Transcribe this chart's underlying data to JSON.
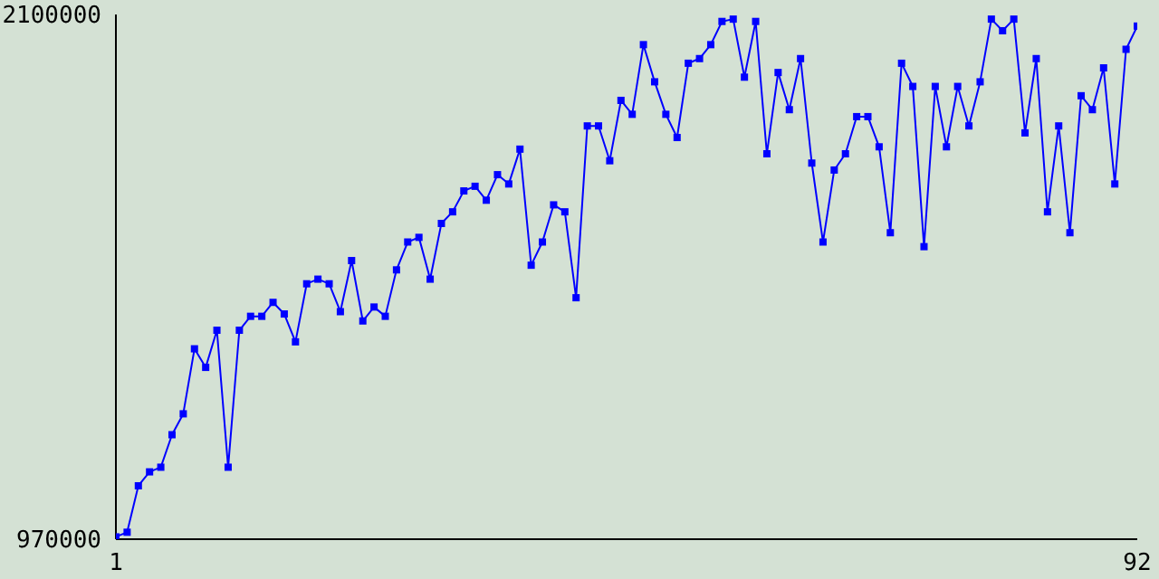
{
  "chart_data": {
    "type": "line",
    "x": [
      1,
      2,
      3,
      4,
      5,
      6,
      7,
      8,
      9,
      10,
      11,
      12,
      13,
      14,
      15,
      16,
      17,
      18,
      19,
      20,
      21,
      22,
      23,
      24,
      25,
      26,
      27,
      28,
      29,
      30,
      31,
      32,
      33,
      34,
      35,
      36,
      37,
      38,
      39,
      40,
      41,
      42,
      43,
      44,
      45,
      46,
      47,
      48,
      49,
      50,
      51,
      52,
      53,
      54,
      55,
      56,
      57,
      58,
      59,
      60,
      61,
      62,
      63,
      64,
      65,
      66,
      67,
      68,
      69,
      70,
      71,
      72,
      73,
      74,
      75,
      76,
      77,
      78,
      79,
      80,
      81,
      82,
      83,
      84,
      85,
      86,
      87,
      88,
      89,
      90,
      91,
      92
    ],
    "series": [
      {
        "color": "#0000ff",
        "values": [
          975000,
          985000,
          1085000,
          1115000,
          1125000,
          1195000,
          1240000,
          1380000,
          1340000,
          1420000,
          1125000,
          1420000,
          1450000,
          1450000,
          1480000,
          1455000,
          1395000,
          1520000,
          1530000,
          1520000,
          1460000,
          1570000,
          1440000,
          1470000,
          1450000,
          1550000,
          1610000,
          1620000,
          1530000,
          1650000,
          1675000,
          1720000,
          1730000,
          1700000,
          1755000,
          1735000,
          1810000,
          1560000,
          1610000,
          1690000,
          1675000,
          1490000,
          1860000,
          1860000,
          1785000,
          1915000,
          1885000,
          2035000,
          1955000,
          1885000,
          1835000,
          1995000,
          2005000,
          2035000,
          2085000,
          2090000,
          1965000,
          2085000,
          1800000,
          1975000,
          1895000,
          2005000,
          1780000,
          1610000,
          1765000,
          1800000,
          1880000,
          1880000,
          1815000,
          1630000,
          1995000,
          1945000,
          1600000,
          1945000,
          1815000,
          1945000,
          1860000,
          1955000,
          2090000,
          2065000,
          2090000,
          1845000,
          2005000,
          1675000,
          1860000,
          1630000,
          1925000,
          1895000,
          1985000,
          1735000,
          2025000,
          2075000
        ]
      }
    ],
    "xlim": [
      1,
      92
    ],
    "xticks": [
      1,
      92
    ],
    "ylim": [
      970000,
      2100000
    ],
    "yticks": [
      970000,
      2100000
    ],
    "grid": false,
    "legend": false,
    "marker": "square",
    "line_style": "solid"
  }
}
